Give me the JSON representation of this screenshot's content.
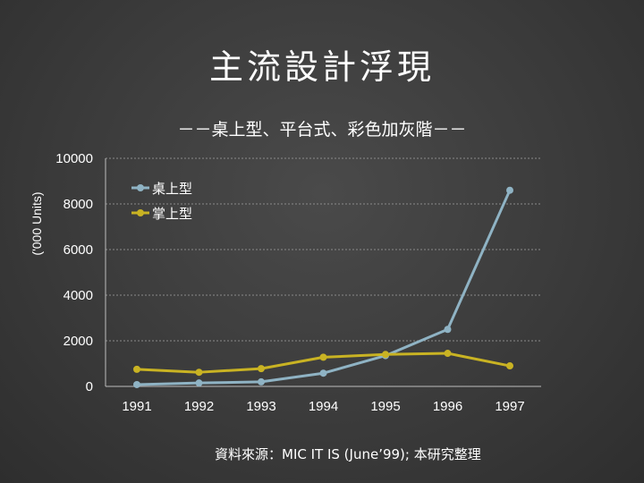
{
  "slide": {
    "title": "主流設計浮現",
    "source": "資料來源：MIC IT IS (June’99); 本研究整理"
  },
  "chart_data": {
    "type": "line",
    "title": "－－桌上型、平台式、彩色加灰階－－",
    "xlabel": "",
    "ylabel": "('000 Units)",
    "x": [
      "1991",
      "1992",
      "1993",
      "1994",
      "1995",
      "1996",
      "1997"
    ],
    "ylim": [
      0,
      10000
    ],
    "yticks": [
      0,
      2000,
      4000,
      6000,
      8000,
      10000
    ],
    "grid": true,
    "legend_position": "top-left",
    "series": [
      {
        "name": "桌上型",
        "color": "#8fb3c4",
        "values": [
          80,
          150,
          200,
          580,
          1350,
          2500,
          8600
        ]
      },
      {
        "name": "掌上型",
        "color": "#c9b323",
        "values": [
          750,
          620,
          780,
          1280,
          1400,
          1450,
          900
        ]
      }
    ]
  }
}
